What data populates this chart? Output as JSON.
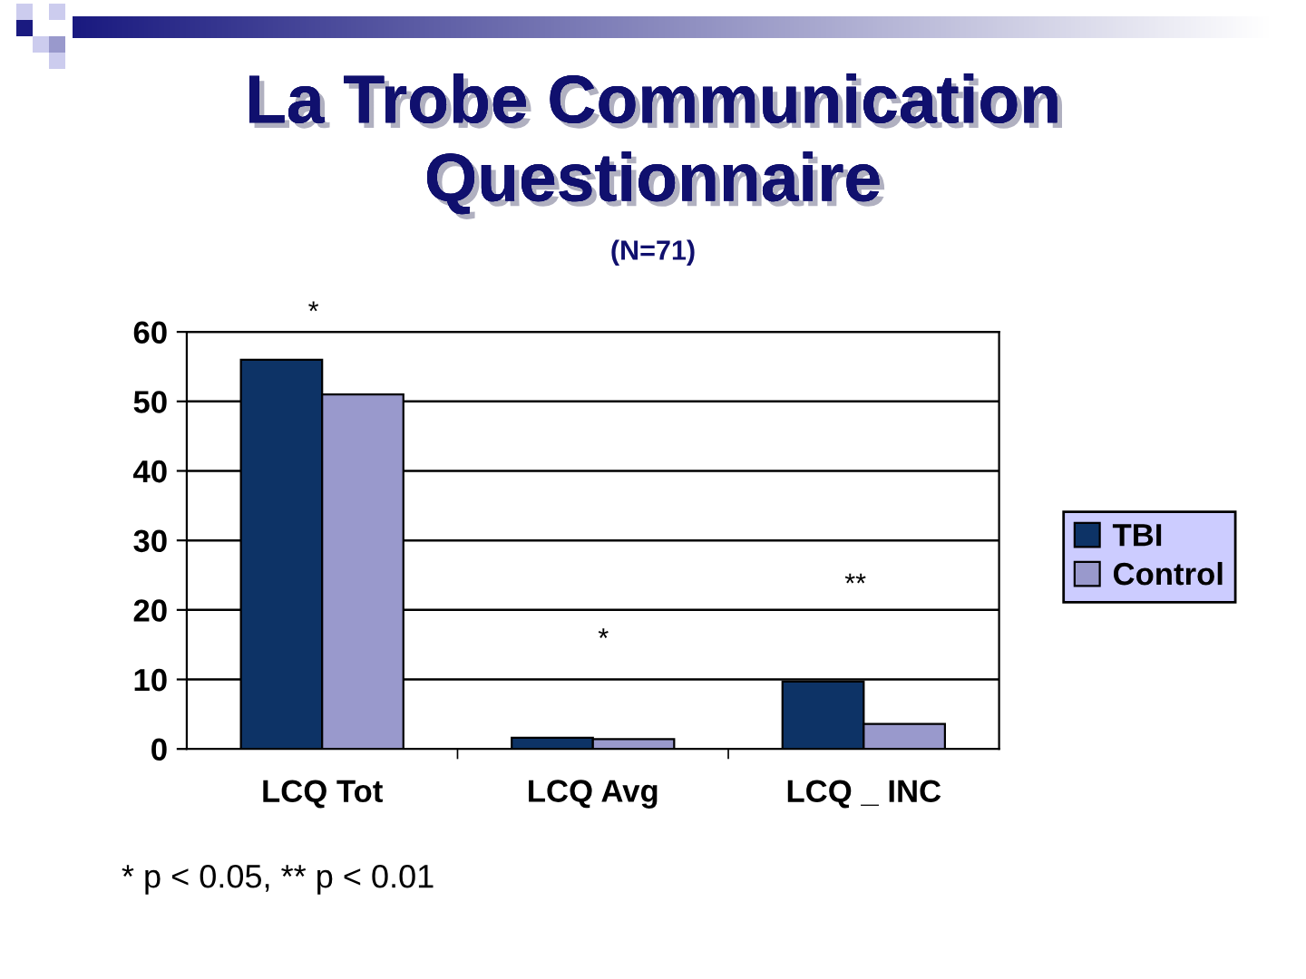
{
  "chart_data": {
    "type": "bar",
    "title": "La Trobe Communication\nQuestionnaire",
    "subtitle": "(N=71)",
    "categories": [
      "LCQ Tot",
      "LCQ Avg",
      "LCQ _ INC"
    ],
    "series": [
      {
        "name": "TBI",
        "color": "#0d3366",
        "values": [
          56,
          1.6,
          9.7
        ]
      },
      {
        "name": "Control",
        "color": "#9999cc",
        "values": [
          51,
          1.4,
          3.6
        ]
      }
    ],
    "ylim": [
      0,
      60
    ],
    "yticks": [
      0,
      10,
      20,
      30,
      40,
      50,
      60
    ],
    "grid": "y",
    "legend": "right",
    "annotations": [
      "*",
      "*",
      "**",
      "* p < 0.05, ** p < 0.01"
    ]
  }
}
